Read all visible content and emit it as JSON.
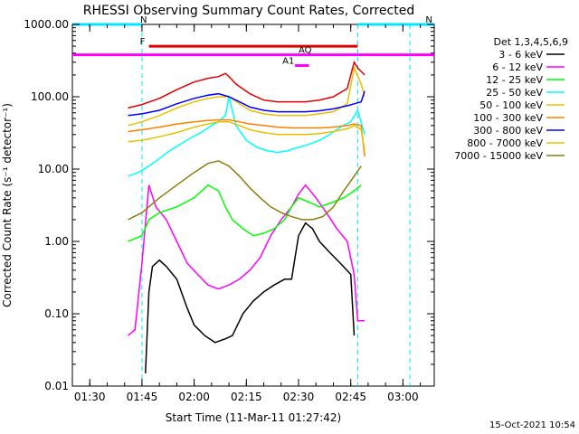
{
  "chart_data": {
    "type": "line",
    "title": "RHESSI Observing Summary Count Rates, Corrected",
    "xlabel": "Start Time (11-Mar-11 01:27:42)",
    "ylabel": "Corrected Count Rate (s⁻¹ detector⁻¹)",
    "timestamp": "15-Oct-2021 10:54",
    "x_range": [
      "01:25",
      "03:09"
    ],
    "y_scale": "log",
    "ylim": [
      0.01,
      1000
    ],
    "x_ticks": [
      "01:30",
      "01:45",
      "02:00",
      "02:15",
      "02:30",
      "02:45",
      "03:00"
    ],
    "y_ticks": [
      "0.01",
      "0.10",
      "1.00",
      "10.00",
      "100.00",
      "1000.00"
    ],
    "legend_title": "Det 1,3,4,5,6,9",
    "legend_position": "right",
    "flags": [
      {
        "label": "N",
        "color": "#00e8ff",
        "start": "01:25",
        "end": "01:45",
        "y": 1000
      },
      {
        "label": "N",
        "color": "#00e8ff",
        "start": "02:47",
        "end": "03:09",
        "y": 1000
      },
      {
        "label": "F",
        "color": "#e00000",
        "start": "01:47",
        "end": "02:47",
        "y": 500
      },
      {
        "label": "AQ",
        "color": "#ff00ff",
        "start": "01:25",
        "end": "03:09",
        "y": 380
      },
      {
        "label": "A1",
        "color": "#ff00ff",
        "start": "02:29",
        "end": "02:33",
        "y": 270
      }
    ],
    "night_lines": [
      "01:45",
      "02:47",
      "03:02"
    ],
    "series": [
      {
        "name": "3 - 6 keV",
        "color": "#000000",
        "x": [
          "01:46",
          "01:47",
          "01:48",
          "01:50",
          "01:52",
          "01:55",
          "01:58",
          "02:00",
          "02:03",
          "02:06",
          "02:09",
          "02:11",
          "02:14",
          "02:17",
          "02:20",
          "02:23",
          "02:26",
          "02:28",
          "02:30",
          "02:32",
          "02:34",
          "02:36",
          "02:39",
          "02:42",
          "02:45",
          "02:46"
        ],
        "values": [
          0.015,
          0.2,
          0.45,
          0.55,
          0.45,
          0.3,
          0.12,
          0.07,
          0.05,
          0.04,
          0.045,
          0.05,
          0.1,
          0.15,
          0.2,
          0.25,
          0.3,
          0.3,
          1.2,
          1.8,
          1.5,
          1.0,
          0.7,
          0.5,
          0.35,
          0.05
        ]
      },
      {
        "name": "6 - 12 keV",
        "color": "#ff00ff",
        "x": [
          "01:41",
          "01:43",
          "01:45",
          "01:47",
          "01:49",
          "01:52",
          "01:55",
          "01:58",
          "02:01",
          "02:04",
          "02:07",
          "02:10",
          "02:13",
          "02:16",
          "02:19",
          "02:22",
          "02:25",
          "02:28",
          "02:30",
          "02:32",
          "02:35",
          "02:38",
          "02:41",
          "02:44",
          "02:46",
          "02:47",
          "02:49"
        ],
        "values": [
          0.05,
          0.06,
          0.5,
          6,
          3,
          2,
          1,
          0.5,
          0.35,
          0.25,
          0.22,
          0.25,
          0.3,
          0.4,
          0.6,
          1.2,
          2,
          3,
          4.5,
          6,
          4,
          2.5,
          1.5,
          1.0,
          0.35,
          0.08,
          0.08
        ]
      },
      {
        "name": "12 - 25 keV",
        "color": "#00ff00",
        "x": [
          "01:41",
          "01:45",
          "01:47",
          "01:50",
          "01:55",
          "02:00",
          "02:04",
          "02:07",
          "02:09",
          "02:11",
          "02:14",
          "02:17",
          "02:20",
          "02:23",
          "02:26",
          "02:28",
          "02:30",
          "02:33",
          "02:36",
          "02:40",
          "02:43",
          "02:46",
          "02:48"
        ],
        "values": [
          1.0,
          1.2,
          2.0,
          2.5,
          3,
          4,
          6,
          5,
          3,
          2,
          1.5,
          1.2,
          1.3,
          1.5,
          2,
          3,
          4,
          3.5,
          3,
          3.5,
          4,
          5,
          6
        ]
      },
      {
        "name": "25 - 50 keV",
        "color": "#00ffff",
        "x": [
          "01:41",
          "01:44",
          "01:47",
          "01:50",
          "01:53",
          "01:56",
          "01:59",
          "02:02",
          "02:05",
          "02:07",
          "02:09",
          "02:10",
          "02:12",
          "02:15",
          "02:18",
          "02:21",
          "02:24",
          "02:27",
          "02:30",
          "02:33",
          "02:36",
          "02:39",
          "02:42",
          "02:45",
          "02:47",
          "02:49"
        ],
        "values": [
          8,
          9,
          11,
          14,
          18,
          22,
          27,
          32,
          40,
          45,
          55,
          100,
          40,
          25,
          20,
          18,
          17,
          18,
          20,
          22,
          25,
          30,
          38,
          45,
          65,
          30
        ]
      },
      {
        "name": "50 - 100 keV",
        "color": "#e8c000",
        "x": [
          "01:41",
          "01:45",
          "01:50",
          "01:55",
          "02:00",
          "02:04",
          "02:07",
          "02:10",
          "02:13",
          "02:16",
          "02:20",
          "02:24",
          "02:28",
          "02:32",
          "02:36",
          "02:40",
          "02:44",
          "02:46",
          "02:48",
          "02:49"
        ],
        "values": [
          40,
          45,
          55,
          70,
          85,
          95,
          100,
          100,
          80,
          65,
          58,
          55,
          55,
          55,
          58,
          62,
          80,
          250,
          150,
          100
        ]
      },
      {
        "name": "100 - 300 keV",
        "color": "#ff8000",
        "x": [
          "01:41",
          "01:45",
          "01:50",
          "01:55",
          "02:00",
          "02:04",
          "02:07",
          "02:10",
          "02:13",
          "02:16",
          "02:20",
          "02:24",
          "02:28",
          "02:32",
          "02:36",
          "02:40",
          "02:44",
          "02:46",
          "02:48",
          "02:49"
        ],
        "values": [
          33,
          35,
          38,
          42,
          45,
          47,
          48,
          48,
          45,
          42,
          40,
          38,
          37,
          37,
          37,
          38,
          40,
          42,
          40,
          15
        ]
      },
      {
        "name": "300 - 800 keV",
        "color": "#0000ff",
        "x": [
          "01:41",
          "01:45",
          "01:50",
          "01:55",
          "02:00",
          "02:04",
          "02:07",
          "02:10",
          "02:13",
          "02:16",
          "02:20",
          "02:24",
          "02:28",
          "02:32",
          "02:36",
          "02:40",
          "02:44",
          "02:46",
          "02:48",
          "02:49"
        ],
        "values": [
          55,
          58,
          65,
          80,
          95,
          105,
          110,
          100,
          85,
          72,
          65,
          62,
          62,
          62,
          64,
          68,
          75,
          80,
          85,
          120
        ]
      },
      {
        "name": "800 - 7000 keV",
        "color": "#e8c000",
        "x": [
          "01:41",
          "01:45",
          "01:50",
          "01:55",
          "02:00",
          "02:04",
          "02:07",
          "02:10",
          "02:13",
          "02:16",
          "02:20",
          "02:24",
          "02:28",
          "02:32",
          "02:36",
          "02:40",
          "02:44",
          "02:46",
          "02:48",
          "02:49"
        ],
        "values": [
          24,
          25,
          28,
          32,
          38,
          42,
          45,
          45,
          40,
          35,
          32,
          30,
          30,
          30,
          31,
          33,
          36,
          40,
          35,
          18
        ]
      },
      {
        "name": "7000 - 15000 keV",
        "color": "#8b7d10",
        "x": [
          "01:41",
          "01:45",
          "01:50",
          "01:55",
          "02:00",
          "02:04",
          "02:07",
          "02:10",
          "02:13",
          "02:16",
          "02:19",
          "02:22",
          "02:25",
          "02:28",
          "02:31",
          "02:34",
          "02:37",
          "02:40",
          "02:43",
          "02:46",
          "02:48"
        ],
        "values": [
          2,
          2.5,
          4,
          6,
          9,
          12,
          13,
          11,
          8,
          5.5,
          4,
          3,
          2.5,
          2.2,
          2,
          2,
          2.2,
          3,
          5,
          8,
          11
        ]
      }
    ],
    "top_red_curve": {
      "color": "#e00000",
      "x": [
        "01:41",
        "01:45",
        "01:50",
        "01:55",
        "02:00",
        "02:04",
        "02:07",
        "02:09",
        "02:10",
        "02:12",
        "02:16",
        "02:20",
        "02:24",
        "02:28",
        "02:32",
        "02:36",
        "02:40",
        "02:44",
        "02:46",
        "02:47",
        "02:49"
      ],
      "values": [
        70,
        78,
        95,
        125,
        160,
        180,
        190,
        210,
        190,
        150,
        110,
        90,
        85,
        85,
        85,
        90,
        100,
        130,
        300,
        250,
        200
      ]
    }
  }
}
